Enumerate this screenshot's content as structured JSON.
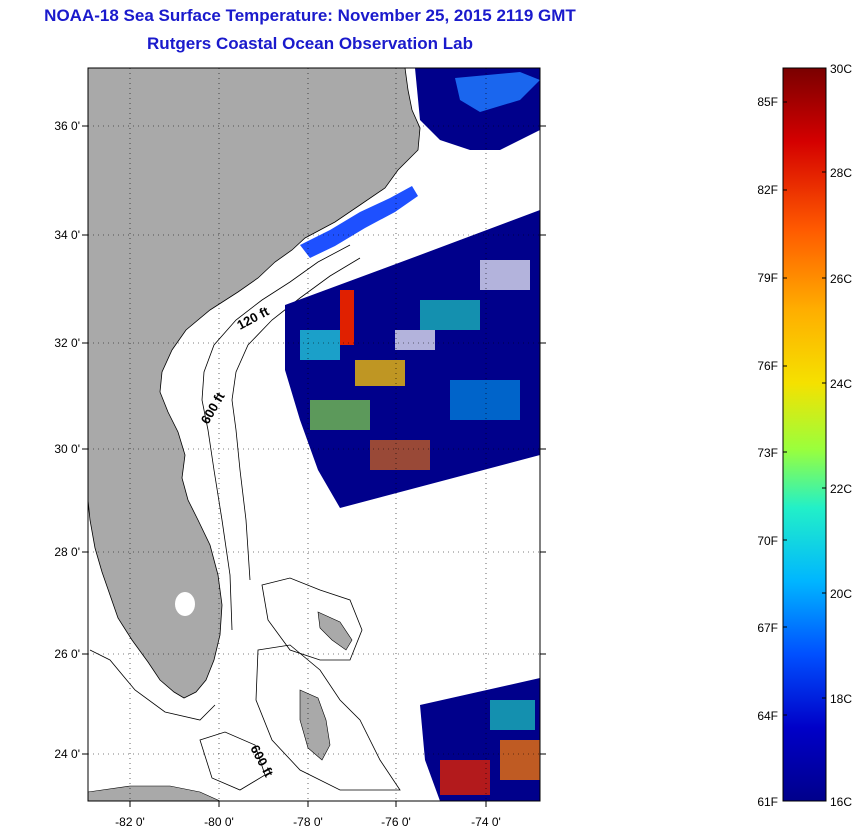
{
  "title": {
    "line1": "NOAA-18 Sea Surface Temperature:  November 25, 2015 2119 GMT",
    "line2": "Rutgers Coastal Ocean Observation Lab"
  },
  "map": {
    "lat_ticks": [
      "36 0'",
      "34 0'",
      "32 0'",
      "30 0'",
      "28 0'",
      "26 0'",
      "24 0'"
    ],
    "lon_ticks": [
      "-82 0'",
      "-80 0'",
      "-78 0'",
      "-76 0'",
      "-74 0'"
    ],
    "contour_labels": [
      "120 ft",
      "600 ft",
      "600 ft"
    ],
    "colors": {
      "land": "#a9a9a9",
      "ocean_nodata": "#ffffff",
      "cold": "#00008b"
    }
  },
  "colorbar": {
    "celsius_labels": [
      "30C",
      "28C",
      "26C",
      "24C",
      "22C",
      "20C",
      "18C",
      "16C"
    ],
    "fahrenheit_labels": [
      "85F",
      "82F",
      "79F",
      "76F",
      "73F",
      "70F",
      "67F",
      "64F",
      "61F"
    ],
    "range_c": [
      16,
      30
    ],
    "gradient_colors": [
      "#7a0000",
      "#d40000",
      "#ff5a00",
      "#ffae00",
      "#f5e100",
      "#9aff3c",
      "#22f0c8",
      "#00b6ff",
      "#0050ff",
      "#0000c8",
      "#00008b"
    ]
  }
}
